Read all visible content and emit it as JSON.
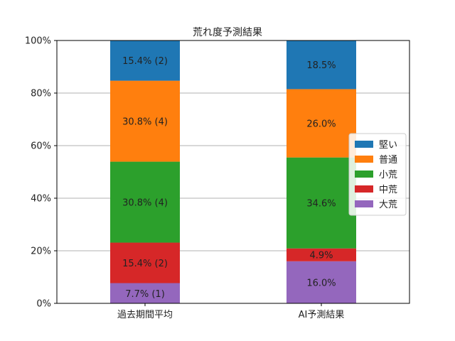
{
  "chart_data": {
    "type": "bar",
    "stacked": true,
    "title": "荒れ度予測結果",
    "categories": [
      "過去期間平均",
      "AI予測結果"
    ],
    "ylim": [
      0,
      100
    ],
    "yticks": [
      "0%",
      "20%",
      "40%",
      "60%",
      "80%",
      "100%"
    ],
    "grid": "y",
    "legend_position": "right",
    "series": [
      {
        "name": "大荒",
        "color": "#9467bd",
        "values": [
          7.7,
          16.0
        ],
        "labels": [
          "7.7% (1)",
          "16.0%"
        ]
      },
      {
        "name": "中荒",
        "color": "#d62728",
        "values": [
          15.4,
          4.9
        ],
        "labels": [
          "15.4% (2)",
          "4.9%"
        ]
      },
      {
        "name": "小荒",
        "color": "#2ca02c",
        "values": [
          30.8,
          34.6
        ],
        "labels": [
          "30.8% (4)",
          "34.6%"
        ]
      },
      {
        "name": "普通",
        "color": "#ff7f0e",
        "values": [
          30.8,
          26.0
        ],
        "labels": [
          "30.8% (4)",
          "26.0%"
        ]
      },
      {
        "name": "堅い",
        "color": "#1f77b4",
        "values": [
          15.4,
          18.5
        ],
        "labels": [
          "15.4% (2)",
          "18.5%"
        ]
      }
    ],
    "legend_order": [
      "堅い",
      "普通",
      "小荒",
      "中荒",
      "大荒"
    ]
  }
}
